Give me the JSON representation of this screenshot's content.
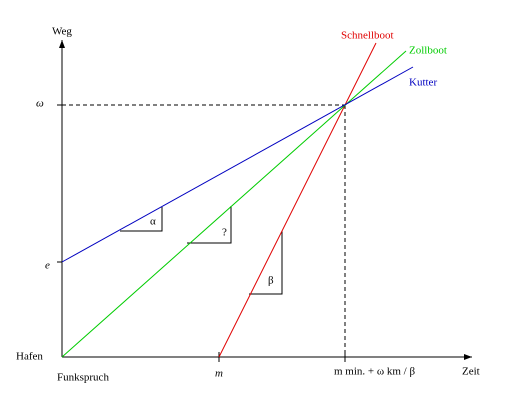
{
  "axes": {
    "y_label": "Weg",
    "x_label": "Zeit"
  },
  "y_labels": {
    "origin": "Hafen",
    "e": "e",
    "omega": "ω"
  },
  "x_labels": {
    "origin": "Funkspruch",
    "m": "m",
    "end": "m min. + ω km / β"
  },
  "lines": [
    {
      "label": "Schnellboot",
      "color": "#e00000"
    },
    {
      "label": "Zollboot",
      "color": "#00cc00"
    },
    {
      "label": "Kutter",
      "color": "#0000c0"
    }
  ],
  "angles": {
    "alpha": "α",
    "unknown": "?",
    "beta": "β"
  }
}
